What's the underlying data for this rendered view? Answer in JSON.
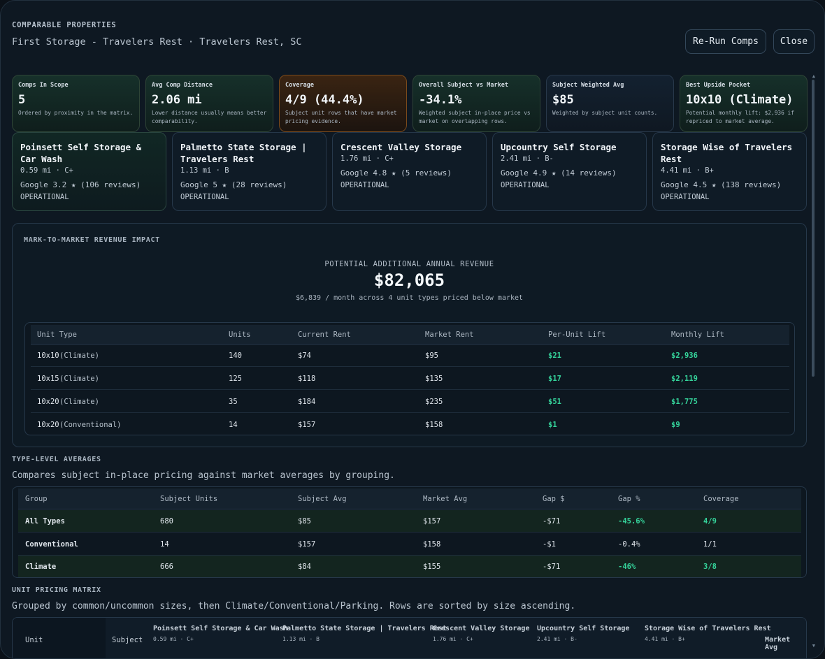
{
  "header": {
    "eyebrow": "COMPARABLE PROPERTIES",
    "subtitle": "First Storage - Travelers Rest · Travelers Rest, SC",
    "rerun_label": "Re-Run Comps",
    "close_label": "Close"
  },
  "kpis": [
    {
      "label": "Comps In Scope",
      "value": "5",
      "note": "Ordered by proximity in the matrix."
    },
    {
      "label": "Avg Comp Distance",
      "value": "2.06 mi",
      "note": "Lower distance usually means better comparability."
    },
    {
      "label": "Coverage",
      "value": "4/9 (44.4%)",
      "note": "Subject unit rows that have market pricing evidence."
    },
    {
      "label": "Overall Subject vs Market",
      "value": "-34.1%",
      "note": "Weighted subject in-place price vs market on overlapping rows."
    },
    {
      "label": "Subject Weighted Avg",
      "value": "$85",
      "note": "Weighted by subject unit counts."
    },
    {
      "label": "Best Upside Pocket",
      "value": "10x10 (Climate)",
      "note": "Potential monthly lift: $2,936 if repriced to market average."
    }
  ],
  "comps": [
    {
      "name": "Poinsett Self Storage & Car Wash",
      "meta": "0.59 mi · C+",
      "rating": "Google 3.2 ★ (106 reviews)",
      "status": "OPERATIONAL"
    },
    {
      "name": "Palmetto State Storage | Travelers Rest",
      "meta": "1.13 mi · B",
      "rating": "Google 5 ★ (28 reviews)",
      "status": "OPERATIONAL"
    },
    {
      "name": "Crescent Valley Storage",
      "meta": "1.76 mi · C+",
      "rating": "Google 4.8 ★ (5 reviews)",
      "status": "OPERATIONAL"
    },
    {
      "name": "Upcountry Self Storage",
      "meta": "2.41 mi · B-",
      "rating": "Google 4.9 ★ (14 reviews)",
      "status": "OPERATIONAL"
    },
    {
      "name": "Storage Wise of Travelers Rest",
      "meta": "4.41 mi · B+",
      "rating": "Google 4.5 ★ (138 reviews)",
      "status": "OPERATIONAL"
    }
  ],
  "mtm": {
    "title": "MARK-TO-MARKET REVENUE IMPACT",
    "potential_label": "POTENTIAL ADDITIONAL ANNUAL REVENUE",
    "potential_value": "$82,065",
    "potential_note": "$6,839 / month across 4 unit types priced below market",
    "columns": [
      "Unit Type",
      "Units",
      "Current Rent",
      "Market Rent",
      "Per-Unit Lift",
      "Monthly Lift"
    ],
    "rows": [
      {
        "size": "10x10",
        "kind": "(Climate)",
        "units": "140",
        "current": "$74",
        "market": "$95",
        "per_unit": "$21",
        "monthly": "$2,936"
      },
      {
        "size": "10x15",
        "kind": "(Climate)",
        "units": "125",
        "current": "$118",
        "market": "$135",
        "per_unit": "$17",
        "monthly": "$2,119"
      },
      {
        "size": "10x20",
        "kind": "(Climate)",
        "units": "35",
        "current": "$184",
        "market": "$235",
        "per_unit": "$51",
        "monthly": "$1,775"
      },
      {
        "size": "10x20",
        "kind": "(Conventional)",
        "units": "14",
        "current": "$157",
        "market": "$158",
        "per_unit": "$1",
        "monthly": "$9"
      }
    ]
  },
  "type_avg": {
    "title": "TYPE-LEVEL AVERAGES",
    "subtitle": "Compares subject in-place pricing against market averages by grouping.",
    "columns": [
      "Group",
      "Subject Units",
      "Subject Avg",
      "Market Avg",
      "Gap $",
      "Gap %",
      "Coverage"
    ],
    "rows": [
      {
        "group": "All Types",
        "units": "680",
        "subject_avg": "$85",
        "market_avg": "$157",
        "gap": "-$71",
        "gap_pct": "-45.6%",
        "coverage": "4/9"
      },
      {
        "group": "Conventional",
        "units": "14",
        "subject_avg": "$157",
        "market_avg": "$158",
        "gap": "-$1",
        "gap_pct": "-0.4%",
        "coverage": "1/1"
      },
      {
        "group": "Climate",
        "units": "666",
        "subject_avg": "$84",
        "market_avg": "$155",
        "gap": "-$71",
        "gap_pct": "-46%",
        "coverage": "3/8"
      }
    ]
  },
  "matrix": {
    "title": "UNIT PRICING MATRIX",
    "subtitle": "Grouped by common/uncommon sizes, then Climate/Conventional/Parking. Rows are sorted by size ascending.",
    "col_unit": "Unit",
    "col_subject": "Subject",
    "col_market": "Market Avg",
    "comps": [
      {
        "name": "Poinsett Self Storage & Car Wash",
        "meta": "0.59 mi · C+"
      },
      {
        "name": "Palmetto State Storage | Travelers Rest",
        "meta": "1.13 mi · B"
      },
      {
        "name": "Crescent Valley Storage",
        "meta": "1.76 mi · C+"
      },
      {
        "name": "Upcountry Self Storage",
        "meta": "2.41 mi · B-"
      },
      {
        "name": "Storage Wise of Travelers Rest",
        "meta": "4.41 mi · B+"
      }
    ]
  },
  "scroll": {
    "up": "▲",
    "down": "▼"
  }
}
